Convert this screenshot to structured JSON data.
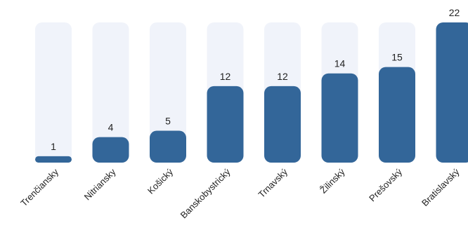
{
  "chart_data": {
    "type": "bar",
    "categories": [
      "Trenčiansky",
      "Nitriansky",
      "Košický",
      "Banskobystrický",
      "Trnavský",
      "Žilinský",
      "Prešovský",
      "Bratislavský"
    ],
    "values": [
      1,
      4,
      5,
      12,
      12,
      14,
      15,
      22
    ],
    "ylim": [
      0,
      22
    ],
    "grid": false,
    "legend": "none",
    "colors": {
      "bar": "#336699",
      "track": "#f0f3fa",
      "text": "#222222"
    }
  }
}
